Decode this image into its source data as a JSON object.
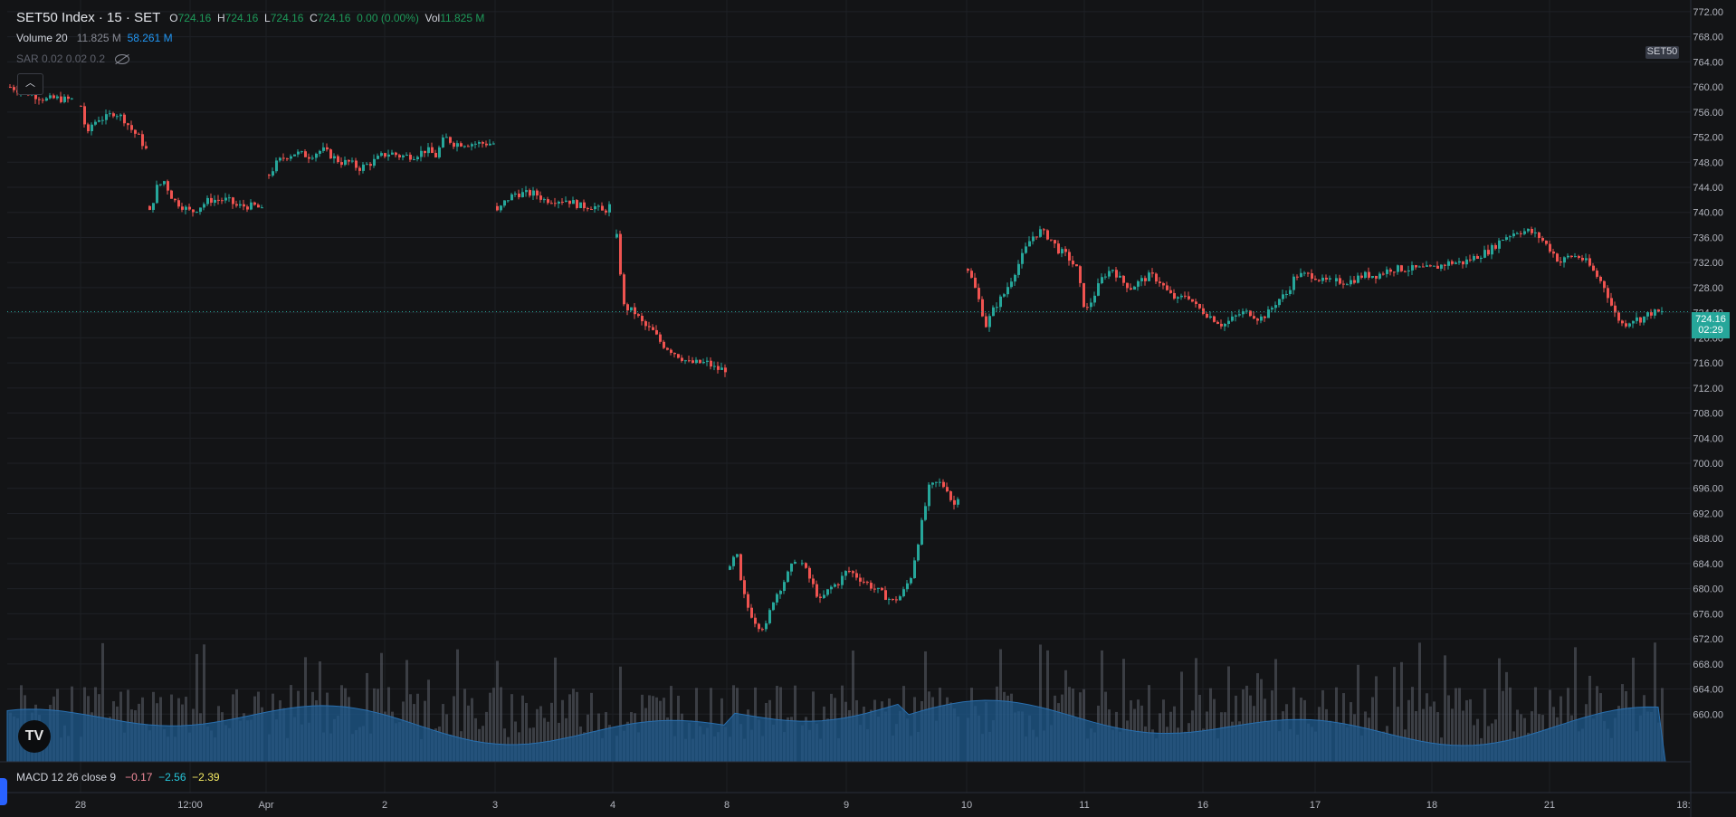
{
  "header": {
    "symbol": "SET50 Index · 15 · SET",
    "open_label": "O",
    "open": "724.16",
    "high_label": "H",
    "high": "724.16",
    "low_label": "L",
    "low": "724.16",
    "close_label": "C",
    "close": "724.16",
    "change": "0.00 (0.00%)",
    "vol_label": "Vol",
    "vol": "11.825 M"
  },
  "volume_legend": {
    "name": "Volume 20",
    "value": "11.825 M",
    "ma": "58.261 M"
  },
  "sar_legend": {
    "name": "SAR 0.02 0.02 0.2"
  },
  "macd_legend": {
    "name": "MACD 12 26 close 9",
    "v1": "−0.17",
    "v2": "−2.56",
    "v3": "−2.39"
  },
  "symbol_tag": "SET50",
  "last_price_tag": {
    "price": "724.16",
    "countdown": "02:29"
  },
  "logo_text": "TV",
  "colors": {
    "up": "#26a69a",
    "down": "#ef5350",
    "volume": "#5d606b",
    "volume_ma": "#1e5a8e",
    "background": "#131416"
  },
  "chart_data": {
    "type": "candlestick",
    "y_axis_ticks": [
      "772.00",
      "768.00",
      "764.00",
      "760.00",
      "756.00",
      "752.00",
      "748.00",
      "744.00",
      "740.00",
      "736.00",
      "732.00",
      "728.00",
      "724.00",
      "720.00",
      "716.00",
      "712.00",
      "708.00",
      "704.00",
      "700.00",
      "696.00",
      "692.00",
      "688.00",
      "684.00",
      "680.00",
      "676.00",
      "672.00",
      "668.00",
      "664.00",
      "660.00"
    ],
    "ylim": [
      656,
      773
    ],
    "x_axis_ticks": [
      "28",
      "12:00",
      "Apr",
      "2",
      "3",
      "4",
      "8",
      "9",
      "10",
      "11",
      "16",
      "17",
      "18",
      "21",
      "18:"
    ],
    "last_price": 724.16,
    "series": [
      {
        "name": "seg1",
        "x_start": 10,
        "x_end": 78,
        "open": 760.0,
        "points": [
          [
            10,
            760.0
          ],
          [
            20,
            759.5
          ],
          [
            30,
            759.0
          ],
          [
            40,
            758.5
          ],
          [
            50,
            758.0
          ],
          [
            60,
            758.2
          ],
          [
            70,
            758.0
          ],
          [
            78,
            758.0
          ]
        ]
      },
      {
        "name": "seg2",
        "x_start": 88,
        "x_end": 160,
        "open": 757.0,
        "points": [
          [
            88,
            757
          ],
          [
            95,
            752
          ],
          [
            100,
            754
          ],
          [
            108,
            755
          ],
          [
            115,
            755
          ],
          [
            125,
            756
          ],
          [
            135,
            755
          ],
          [
            145,
            753
          ],
          [
            152,
            752
          ],
          [
            160,
            750
          ]
        ]
      },
      {
        "name": "seg3",
        "x_start": 164,
        "x_end": 290,
        "open": 741.0,
        "points": [
          [
            164,
            740
          ],
          [
            172,
            744
          ],
          [
            180,
            745
          ],
          [
            190,
            742
          ],
          [
            200,
            741
          ],
          [
            210,
            740
          ],
          [
            220,
            741
          ],
          [
            230,
            742
          ],
          [
            240,
            742
          ],
          [
            250,
            742
          ],
          [
            260,
            741
          ],
          [
            270,
            741
          ],
          [
            282,
            741
          ],
          [
            290,
            740
          ]
        ]
      },
      {
        "name": "seg4",
        "x_start": 296,
        "x_end": 545,
        "open": 746.0,
        "points": [
          [
            296,
            746
          ],
          [
            305,
            748
          ],
          [
            315,
            749
          ],
          [
            325,
            749.5
          ],
          [
            340,
            749
          ],
          [
            355,
            750
          ],
          [
            365,
            749
          ],
          [
            375,
            748
          ],
          [
            385,
            748
          ],
          [
            395,
            747
          ],
          [
            410,
            748
          ],
          [
            420,
            749
          ],
          [
            430,
            749.5
          ],
          [
            440,
            749
          ],
          [
            455,
            749
          ],
          [
            470,
            750
          ],
          [
            480,
            749
          ],
          [
            490,
            752
          ],
          [
            500,
            751
          ],
          [
            510,
            751
          ],
          [
            520,
            751
          ],
          [
            530,
            751
          ],
          [
            545,
            751
          ]
        ]
      },
      {
        "name": "seg5",
        "x_start": 548,
        "x_end": 672,
        "open": 741.0,
        "points": [
          [
            548,
            740
          ],
          [
            558,
            742
          ],
          [
            568,
            743
          ],
          [
            578,
            743
          ],
          [
            590,
            743
          ],
          [
            600,
            742
          ],
          [
            612,
            742
          ],
          [
            625,
            742
          ],
          [
            640,
            741
          ],
          [
            655,
            741
          ],
          [
            665,
            740
          ],
          [
            672,
            741
          ]
        ]
      },
      {
        "name": "seg6",
        "x_start": 680,
        "x_end": 800,
        "open": 736.0,
        "points": [
          [
            680,
            736
          ],
          [
            688,
            725
          ],
          [
            700,
            724
          ],
          [
            710,
            722
          ],
          [
            720,
            721
          ],
          [
            730,
            719
          ],
          [
            740,
            718
          ],
          [
            750,
            717
          ],
          [
            760,
            716
          ],
          [
            770,
            716
          ],
          [
            780,
            716
          ],
          [
            790,
            715
          ],
          [
            800,
            715
          ]
        ]
      },
      {
        "name": "seg7",
        "x_start": 805,
        "x_end": 880,
        "open": 683.0,
        "points": [
          [
            805,
            683
          ],
          [
            812,
            686
          ],
          [
            818,
            680
          ],
          [
            825,
            677
          ],
          [
            832,
            675
          ],
          [
            838,
            674
          ],
          [
            845,
            674
          ],
          [
            852,
            678
          ],
          [
            860,
            680
          ],
          [
            868,
            682
          ],
          [
            875,
            684
          ],
          [
            880,
            686
          ]
        ]
      },
      {
        "name": "seg8",
        "x_start": 885,
        "x_end": 1060,
        "open": 684.0,
        "points": [
          [
            885,
            684
          ],
          [
            895,
            681
          ],
          [
            905,
            678
          ],
          [
            915,
            680
          ],
          [
            925,
            681
          ],
          [
            935,
            683
          ],
          [
            945,
            682
          ],
          [
            955,
            681
          ],
          [
            965,
            680
          ],
          [
            975,
            679
          ],
          [
            985,
            678
          ],
          [
            995,
            679
          ],
          [
            1005,
            682
          ],
          [
            1015,
            689
          ],
          [
            1025,
            696
          ],
          [
            1035,
            697
          ],
          [
            1045,
            696
          ],
          [
            1052,
            693
          ],
          [
            1060,
            696
          ]
        ]
      },
      {
        "name": "seg9",
        "x_start": 1068,
        "x_end": 1470,
        "open": 731.0,
        "points": [
          [
            1068,
            731
          ],
          [
            1078,
            727
          ],
          [
            1088,
            722
          ],
          [
            1098,
            725
          ],
          [
            1108,
            727
          ],
          [
            1118,
            730
          ],
          [
            1128,
            733
          ],
          [
            1138,
            736
          ],
          [
            1148,
            737
          ],
          [
            1158,
            736
          ],
          [
            1168,
            734
          ],
          [
            1178,
            733
          ],
          [
            1188,
            731
          ],
          [
            1198,
            724
          ],
          [
            1208,
            727
          ],
          [
            1218,
            730
          ],
          [
            1228,
            731
          ],
          [
            1238,
            729
          ],
          [
            1248,
            728
          ],
          [
            1258,
            729
          ],
          [
            1270,
            730
          ],
          [
            1280,
            729
          ],
          [
            1290,
            727
          ],
          [
            1300,
            726
          ],
          [
            1310,
            727
          ],
          [
            1320,
            725
          ],
          [
            1330,
            724
          ],
          [
            1340,
            723
          ],
          [
            1350,
            722
          ],
          [
            1360,
            723
          ],
          [
            1370,
            724
          ],
          [
            1380,
            724
          ],
          [
            1390,
            723
          ],
          [
            1400,
            724
          ],
          [
            1410,
            726
          ],
          [
            1420,
            727
          ],
          [
            1430,
            730
          ],
          [
            1440,
            730
          ],
          [
            1450,
            730
          ],
          [
            1460,
            729
          ],
          [
            1470,
            729
          ]
        ]
      },
      {
        "name": "seg10",
        "x_start": 1475,
        "x_end": 1835,
        "open": 729.0,
        "points": [
          [
            1475,
            729
          ],
          [
            1490,
            729
          ],
          [
            1505,
            730
          ],
          [
            1520,
            730
          ],
          [
            1535,
            731
          ],
          [
            1550,
            731
          ],
          [
            1565,
            731
          ],
          [
            1580,
            731
          ],
          [
            1600,
            732
          ],
          [
            1615,
            732
          ],
          [
            1630,
            733
          ],
          [
            1645,
            734
          ],
          [
            1660,
            736
          ],
          [
            1675,
            737
          ],
          [
            1688,
            737
          ],
          [
            1700,
            736
          ],
          [
            1712,
            734
          ],
          [
            1722,
            732
          ],
          [
            1732,
            733
          ],
          [
            1742,
            733
          ],
          [
            1752,
            732
          ],
          [
            1762,
            730
          ],
          [
            1772,
            728
          ],
          [
            1782,
            724
          ],
          [
            1792,
            722
          ],
          [
            1802,
            723
          ],
          [
            1812,
            723
          ],
          [
            1822,
            724
          ],
          [
            1835,
            724
          ]
        ]
      }
    ]
  }
}
